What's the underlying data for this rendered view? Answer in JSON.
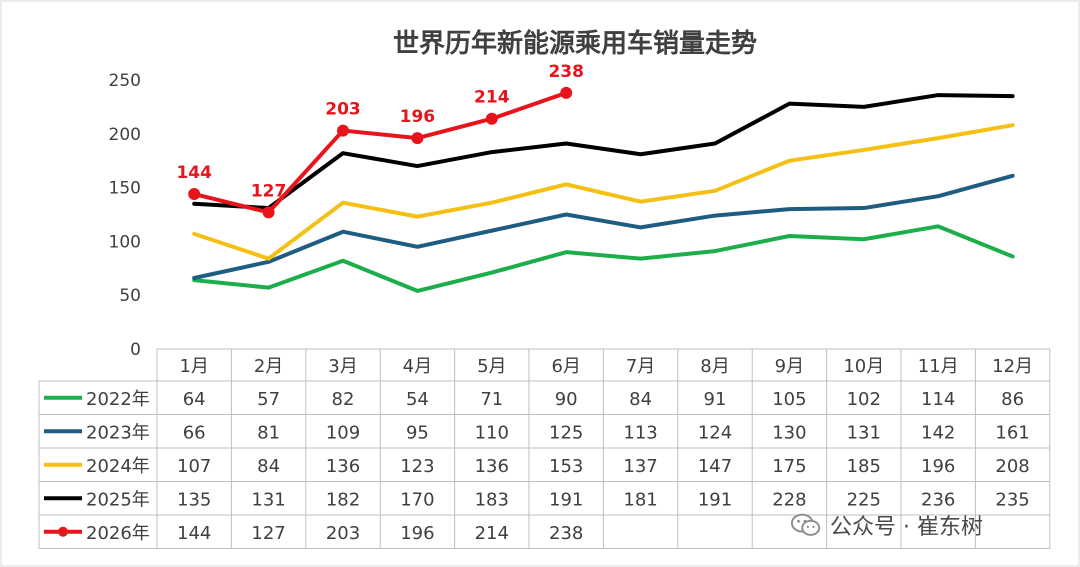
{
  "chart_data": {
    "type": "line",
    "title": "世界历年新能源乘用车销量走势",
    "categories": [
      "1月",
      "2月",
      "3月",
      "4月",
      "5月",
      "6月",
      "7月",
      "8月",
      "9月",
      "10月",
      "11月",
      "12月"
    ],
    "ylim": [
      0,
      250
    ],
    "yticks": [
      "0",
      "50",
      "100",
      "150",
      "200",
      "250"
    ],
    "grid": false,
    "legend": "data-table-left",
    "series": [
      {
        "name": "2022年",
        "color": "#1BAE4B",
        "values": [
          64,
          57,
          82,
          54,
          71,
          90,
          84,
          91,
          105,
          102,
          114,
          86
        ]
      },
      {
        "name": "2023年",
        "color": "#1F5C82",
        "values": [
          66,
          81,
          109,
          95,
          110,
          125,
          113,
          124,
          130,
          131,
          142,
          161
        ]
      },
      {
        "name": "2024年",
        "color": "#F5C014",
        "values": [
          107,
          84,
          136,
          123,
          136,
          153,
          137,
          147,
          175,
          185,
          196,
          208
        ]
      },
      {
        "name": "2025年",
        "color": "#000000",
        "values": [
          135,
          131,
          182,
          170,
          183,
          191,
          181,
          191,
          228,
          225,
          236,
          235
        ]
      },
      {
        "name": "2026年",
        "color": "#E8141B",
        "markers": true,
        "data_labels": true,
        "values": [
          144,
          127,
          203,
          196,
          214,
          238,
          null,
          null,
          null,
          null,
          null,
          null
        ]
      }
    ]
  },
  "watermark": {
    "text": "公众号 · 崔东树",
    "icon": "wechat-icon"
  }
}
